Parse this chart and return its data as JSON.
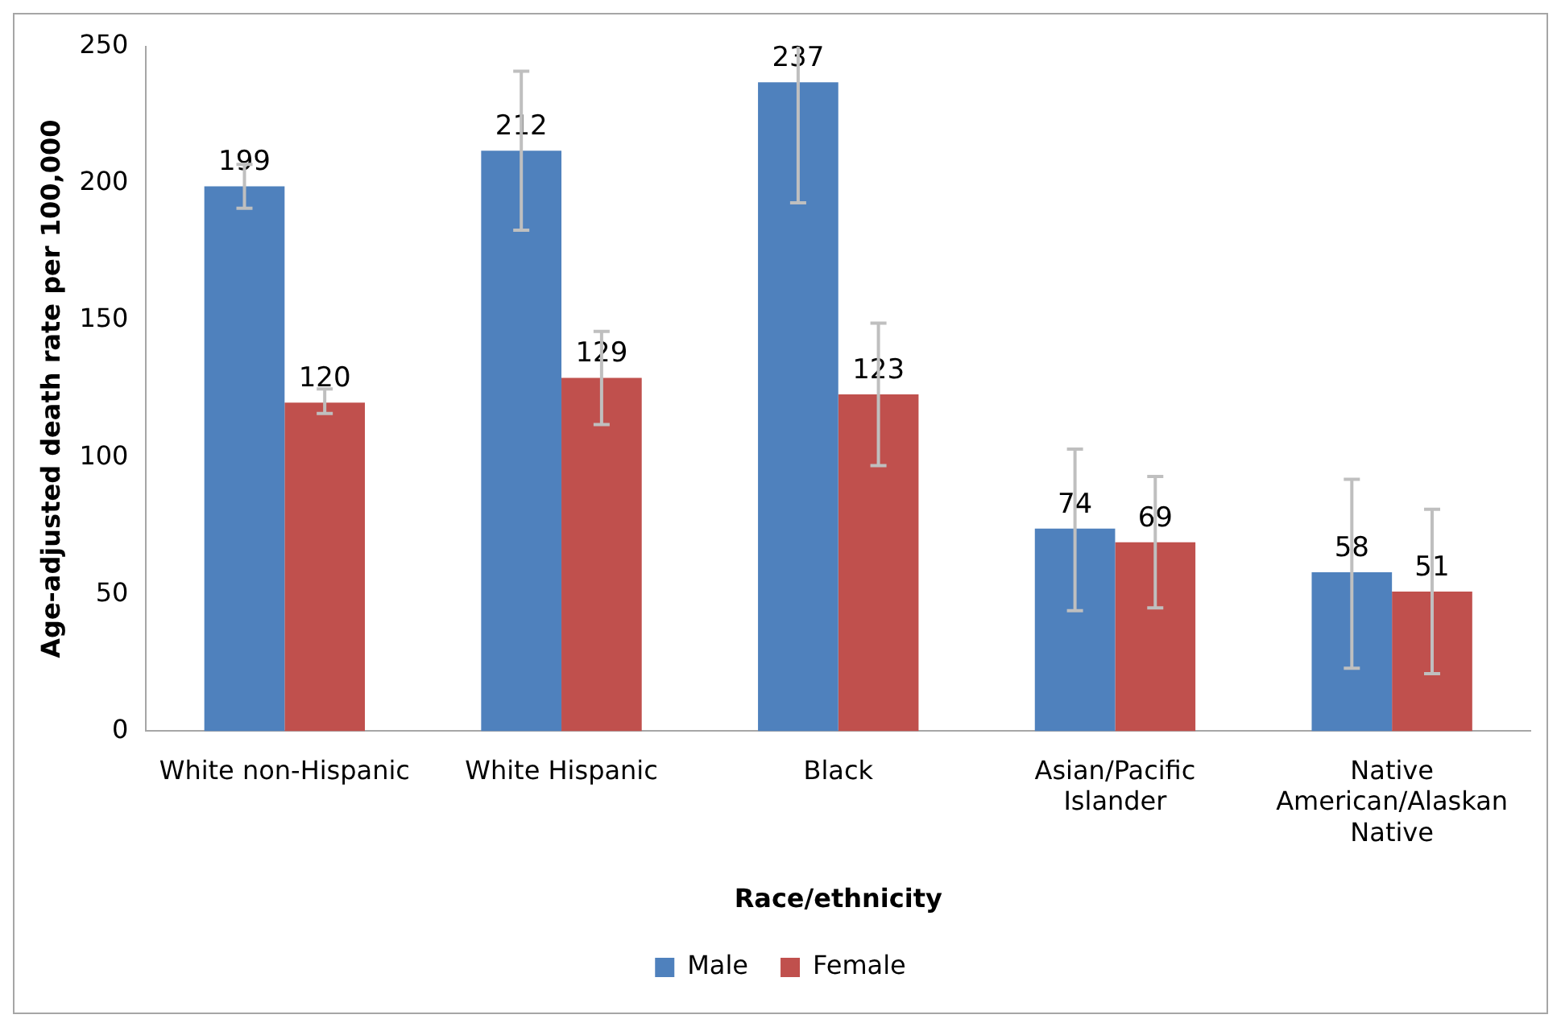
{
  "chart_data": {
    "type": "bar",
    "xlabel": "Race/ethnicity",
    "ylabel": "Age-adjusted death rate per 100,000",
    "categories": [
      "White non-Hispanic",
      "White Hispanic",
      "Black",
      "Asian/Pacific Islander",
      "Native American/Alaskan Native"
    ],
    "series": [
      {
        "name": "Male",
        "color": "#4f81bd",
        "values": [
          199,
          212,
          237,
          74,
          58
        ],
        "errors": [
          [
            191,
            207
          ],
          [
            183,
            241
          ],
          [
            193,
            250
          ],
          [
            44,
            103
          ],
          [
            23,
            92
          ]
        ]
      },
      {
        "name": "Female",
        "color": "#c0504d",
        "values": [
          120,
          129,
          123,
          69,
          51
        ],
        "errors": [
          [
            116,
            125
          ],
          [
            112,
            146
          ],
          [
            97,
            149
          ],
          [
            45,
            93
          ],
          [
            21,
            81
          ]
        ]
      }
    ],
    "ylim": [
      0,
      250
    ],
    "yticks": [
      0,
      50,
      100,
      150,
      200,
      250
    ],
    "grid": false,
    "legend": "bottom",
    "data_labels": true
  }
}
